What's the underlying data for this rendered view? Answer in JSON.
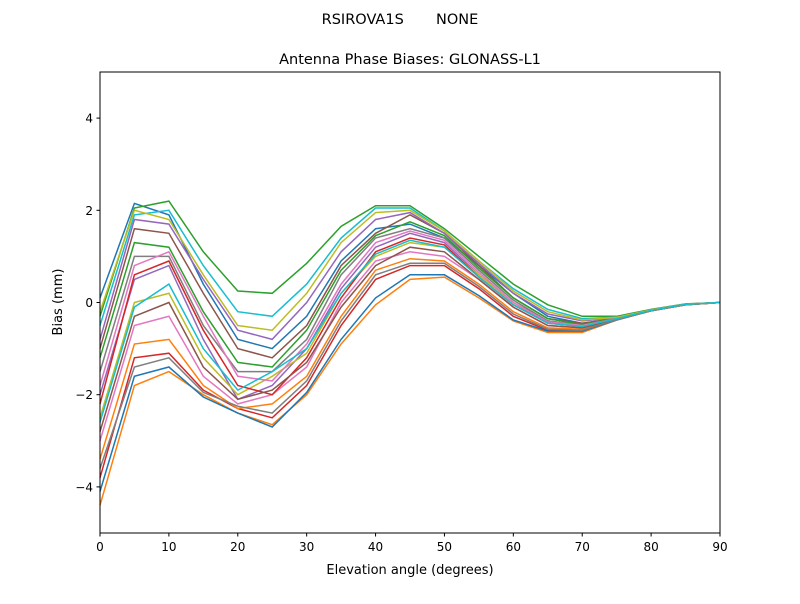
{
  "chart_data": {
    "type": "line",
    "suptitle": "RSIROVA1S       NONE",
    "title": "Antenna Phase Biases: GLONASS-L1",
    "xlabel": "Elevation angle (degrees)",
    "ylabel": "Bias (mm)",
    "xlim": [
      0,
      90
    ],
    "ylim": [
      -5,
      5
    ],
    "xticks": [
      0,
      10,
      20,
      30,
      40,
      50,
      60,
      70,
      80,
      90
    ],
    "yticks": [
      -4,
      -2,
      0,
      2,
      4
    ],
    "grid": false,
    "x": [
      0,
      5,
      10,
      15,
      20,
      25,
      30,
      35,
      40,
      45,
      50,
      55,
      60,
      65,
      70,
      75,
      80,
      85,
      90
    ],
    "colors": [
      "#1f77b4",
      "#ff7f0e",
      "#2ca02c",
      "#d62728",
      "#9467bd",
      "#8c564b",
      "#e377c2",
      "#7f7f7f",
      "#bcbd22",
      "#17becf"
    ],
    "series": [
      {
        "values": [
          0.1,
          2.15,
          1.9,
          0.4,
          -0.8,
          -1.0,
          -0.3,
          0.9,
          1.6,
          1.7,
          1.4,
          0.8,
          0.2,
          -0.3,
          -0.45,
          -0.35,
          -0.18,
          -0.05,
          0
        ]
      },
      {
        "values": [
          -4.4,
          -1.8,
          -1.5,
          -2.0,
          -2.4,
          -2.65,
          -2.0,
          -0.9,
          -0.05,
          0.5,
          0.55,
          0.1,
          -0.4,
          -0.65,
          -0.65,
          -0.38,
          -0.18,
          -0.05,
          0
        ]
      },
      {
        "values": [
          -0.3,
          2.05,
          2.2,
          1.1,
          0.25,
          0.2,
          0.85,
          1.65,
          2.1,
          2.1,
          1.6,
          1.0,
          0.4,
          -0.05,
          -0.3,
          -0.3,
          -0.15,
          -0.03,
          0
        ]
      },
      {
        "values": [
          -3.8,
          -1.2,
          -1.1,
          -1.9,
          -2.3,
          -2.5,
          -1.8,
          -0.5,
          0.5,
          0.8,
          0.8,
          0.3,
          -0.3,
          -0.6,
          -0.6,
          -0.37,
          -0.18,
          -0.05,
          0
        ]
      },
      {
        "values": [
          -2.0,
          0.5,
          0.8,
          -0.8,
          -2.1,
          -1.8,
          -1.0,
          0.3,
          1.2,
          1.5,
          1.3,
          0.6,
          0.0,
          -0.4,
          -0.5,
          -0.35,
          -0.17,
          -0.04,
          0
        ]
      },
      {
        "values": [
          -1.0,
          1.6,
          1.5,
          0.2,
          -1.0,
          -1.2,
          -0.5,
          0.8,
          1.5,
          1.9,
          1.5,
          0.8,
          0.1,
          -0.35,
          -0.45,
          -0.34,
          -0.17,
          -0.04,
          0
        ]
      },
      {
        "values": [
          -3.0,
          -0.5,
          -0.3,
          -1.6,
          -2.2,
          -2.0,
          -1.4,
          0.0,
          0.9,
          1.1,
          1.0,
          0.5,
          -0.1,
          -0.5,
          -0.55,
          -0.36,
          -0.18,
          -0.05,
          0
        ]
      },
      {
        "values": [
          -1.5,
          1.0,
          1.0,
          -0.5,
          -1.5,
          -1.5,
          -0.8,
          0.6,
          1.4,
          1.6,
          1.4,
          0.7,
          0.05,
          -0.4,
          -0.5,
          -0.35,
          -0.17,
          -0.04,
          0
        ]
      },
      {
        "values": [
          -2.5,
          0.0,
          0.2,
          -1.2,
          -2.0,
          -1.6,
          -1.1,
          0.2,
          1.0,
          1.3,
          1.2,
          0.6,
          0.0,
          -0.45,
          -0.5,
          -0.35,
          -0.17,
          -0.04,
          0
        ]
      },
      {
        "values": [
          -0.5,
          1.9,
          2.0,
          0.8,
          -0.2,
          -0.3,
          0.4,
          1.4,
          2.05,
          2.05,
          1.55,
          0.9,
          0.3,
          -0.15,
          -0.35,
          -0.32,
          -0.16,
          -0.04,
          0
        ]
      },
      {
        "values": [
          -4.1,
          -1.6,
          -1.4,
          -2.05,
          -2.4,
          -2.7,
          -1.95,
          -0.8,
          0.1,
          0.6,
          0.6,
          0.15,
          -0.38,
          -0.62,
          -0.62,
          -0.38,
          -0.18,
          -0.05,
          0
        ]
      },
      {
        "values": [
          -3.4,
          -0.9,
          -0.8,
          -1.8,
          -2.3,
          -2.2,
          -1.6,
          -0.3,
          0.7,
          0.95,
          0.9,
          0.4,
          -0.2,
          -0.55,
          -0.58,
          -0.37,
          -0.18,
          -0.05,
          0
        ]
      },
      {
        "values": [
          -1.2,
          1.3,
          1.2,
          -0.2,
          -1.3,
          -1.4,
          -0.6,
          0.7,
          1.45,
          1.75,
          1.45,
          0.75,
          0.1,
          -0.35,
          -0.48,
          -0.34,
          -0.17,
          -0.04,
          0
        ]
      },
      {
        "values": [
          -2.2,
          0.6,
          0.9,
          -0.6,
          -1.8,
          -2.0,
          -1.2,
          0.1,
          1.1,
          1.4,
          1.25,
          0.55,
          -0.05,
          -0.45,
          -0.52,
          -0.35,
          -0.17,
          -0.04,
          0
        ]
      },
      {
        "values": [
          -0.8,
          1.8,
          1.7,
          0.5,
          -0.6,
          -0.8,
          0.0,
          1.1,
          1.8,
          1.95,
          1.5,
          0.85,
          0.2,
          -0.25,
          -0.4,
          -0.33,
          -0.16,
          -0.04,
          0
        ]
      },
      {
        "values": [
          -2.8,
          -0.3,
          0.0,
          -1.4,
          -2.1,
          -1.9,
          -1.3,
          -0.1,
          0.8,
          1.2,
          1.1,
          0.5,
          -0.1,
          -0.5,
          -0.55,
          -0.36,
          -0.18,
          -0.05,
          0
        ]
      },
      {
        "values": [
          -1.8,
          0.8,
          1.1,
          -0.3,
          -1.6,
          -1.7,
          -0.9,
          0.4,
          1.3,
          1.55,
          1.35,
          0.65,
          0.0,
          -0.42,
          -0.5,
          -0.35,
          -0.17,
          -0.04,
          0
        ]
      },
      {
        "values": [
          -3.6,
          -1.4,
          -1.2,
          -1.95,
          -2.25,
          -2.4,
          -1.7,
          -0.4,
          0.6,
          0.85,
          0.85,
          0.35,
          -0.25,
          -0.58,
          -0.6,
          -0.37,
          -0.18,
          -0.05,
          0
        ]
      },
      {
        "values": [
          -0.2,
          2.0,
          1.8,
          0.6,
          -0.5,
          -0.6,
          0.2,
          1.3,
          1.95,
          2.0,
          1.55,
          0.9,
          0.25,
          -0.2,
          -0.38,
          -0.32,
          -0.16,
          -0.04,
          0
        ]
      },
      {
        "values": [
          -2.6,
          -0.1,
          0.4,
          -1.0,
          -1.9,
          -1.5,
          -1.0,
          0.2,
          1.05,
          1.35,
          1.2,
          0.55,
          -0.05,
          -0.45,
          -0.52,
          -0.35,
          -0.17,
          -0.04,
          0
        ]
      }
    ]
  }
}
